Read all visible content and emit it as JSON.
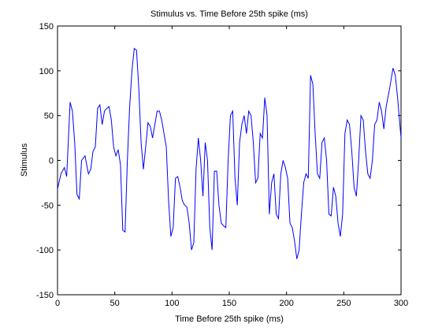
{
  "chart_data": {
    "type": "line",
    "title": "Stimulus vs. Time Before 25th spike (ms)",
    "xlabel": "Time Before 25th spike (ms)",
    "ylabel": "Stimulus",
    "x": [
      0,
      3,
      6,
      8,
      11,
      13,
      15,
      17,
      19,
      21,
      24,
      27,
      29,
      31,
      33,
      35,
      37,
      39,
      41,
      43,
      45,
      47,
      49,
      51,
      53,
      55,
      57,
      59,
      61,
      63,
      65,
      67,
      69,
      71,
      73,
      75,
      77,
      79,
      81,
      83,
      85,
      87,
      89,
      91,
      93,
      95,
      97,
      99,
      101,
      103,
      105,
      107,
      109,
      111,
      113,
      115,
      117,
      119,
      121,
      123,
      125,
      127,
      129,
      131,
      133,
      135,
      137,
      139,
      141,
      143,
      145,
      147,
      149,
      151,
      153,
      155,
      157,
      159,
      161,
      163,
      165,
      167,
      169,
      171,
      173,
      175,
      177,
      179,
      181,
      183,
      185,
      187,
      189,
      191,
      193,
      195,
      197,
      199,
      201,
      203,
      205,
      207,
      209,
      211,
      213,
      215,
      217,
      219,
      221,
      223,
      225,
      227,
      229,
      231,
      233,
      235,
      237,
      239,
      241,
      243,
      245,
      247,
      249,
      251,
      253,
      255,
      257,
      259,
      261,
      263,
      265,
      267,
      269,
      271,
      273,
      275,
      277,
      279,
      281,
      283,
      285,
      287,
      290,
      293,
      295,
      297,
      300
    ],
    "series": [
      {
        "name": "Stimulus",
        "color": "#0000ff",
        "values": [
          -32,
          -15,
          -8,
          -18,
          65,
          55,
          20,
          -38,
          -43,
          0,
          5,
          -15,
          -10,
          10,
          15,
          58,
          62,
          40,
          55,
          58,
          60,
          45,
          15,
          5,
          12,
          -5,
          -78,
          -80,
          0,
          60,
          100,
          125,
          123,
          80,
          20,
          -10,
          15,
          42,
          38,
          25,
          40,
          55,
          55,
          45,
          30,
          15,
          -45,
          -85,
          -75,
          -20,
          -18,
          -30,
          -45,
          -50,
          -52,
          -70,
          -100,
          -92,
          -10,
          25,
          0,
          -40,
          20,
          0,
          -75,
          -100,
          -12,
          -12,
          -50,
          -70,
          -73,
          -75,
          0,
          50,
          55,
          -20,
          -50,
          20,
          40,
          50,
          30,
          55,
          50,
          20,
          -25,
          -20,
          30,
          25,
          70,
          50,
          -60,
          -25,
          -15,
          -60,
          -65,
          -15,
          0,
          -8,
          -20,
          -70,
          -75,
          -90,
          -110,
          -100,
          -60,
          -25,
          -15,
          -20,
          95,
          85,
          30,
          -15,
          -20,
          20,
          25,
          0,
          -60,
          -62,
          -30,
          -40,
          -70,
          -85,
          -60,
          30,
          45,
          40,
          10,
          -30,
          -40,
          0,
          50,
          45,
          10,
          -15,
          -20,
          0,
          40,
          45,
          65,
          55,
          35,
          60,
          80,
          103,
          95,
          70,
          25
        ]
      }
    ],
    "xlim": [
      0,
      300
    ],
    "xticks": [
      0,
      50,
      100,
      150,
      200,
      250,
      300
    ],
    "ylim": [
      -150,
      150
    ],
    "yticks": [
      -150,
      -100,
      -50,
      0,
      50,
      100,
      150
    ]
  }
}
